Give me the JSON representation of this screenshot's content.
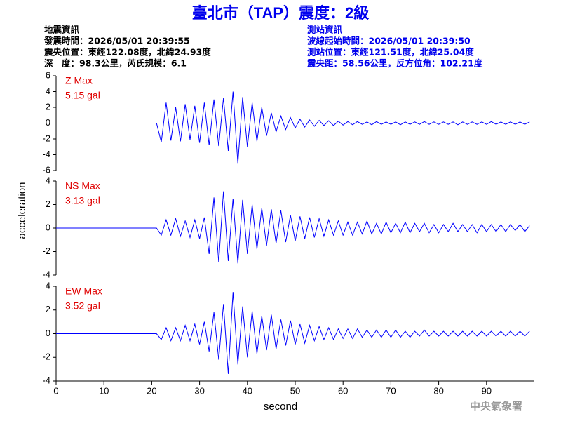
{
  "header": {
    "title": "臺北市（TAP）震度：2級",
    "left": [
      "地震資訊",
      "發震時間：2026/05/01 20:39:55",
      "震央位置：東經122.08度，北緯24.93度",
      "深　度：98.3公里，芮氏規模：6.1"
    ],
    "right": [
      "測站資訊",
      "波線起始時間：2026/05/01 20:39:50",
      "測站位置：東經121.51度，北緯25.04度",
      "震央距：58.56公里，反方位角：102.21度"
    ]
  },
  "ylabel": "acceleration",
  "footer": "中央氣象署",
  "chart_data": [
    {
      "type": "line",
      "label": "Z Max",
      "peak": "5.15 gal",
      "color": "#0000ff",
      "xlim": [
        0,
        100
      ],
      "ylim": [
        -6,
        6
      ],
      "yticks": [
        -6,
        -4,
        -2,
        0,
        2,
        4,
        6
      ],
      "x": [
        0,
        10,
        20,
        21,
        22,
        23,
        24,
        25,
        26,
        27,
        28,
        29,
        30,
        31,
        32,
        33,
        34,
        35,
        36,
        37,
        38,
        39,
        40,
        41,
        42,
        43,
        44,
        45,
        46,
        47,
        48,
        49,
        50,
        51,
        52,
        53,
        54,
        55,
        56,
        57,
        58,
        59,
        60,
        61,
        62,
        63,
        64,
        65,
        66,
        67,
        68,
        69,
        70,
        71,
        72,
        73,
        74,
        75,
        76,
        77,
        78,
        79,
        80,
        81,
        82,
        83,
        84,
        85,
        86,
        87,
        88,
        89,
        90,
        91,
        92,
        93,
        94,
        95,
        96,
        97,
        98,
        99
      ],
      "values": [
        0,
        0,
        0,
        0,
        -2.4,
        2.6,
        -2.2,
        2.0,
        -2.3,
        2.4,
        -2.1,
        2.2,
        -2.5,
        2.6,
        -2.8,
        3.0,
        -2.9,
        3.2,
        -3.5,
        4.0,
        -5.15,
        3.3,
        -3.0,
        2.6,
        -2.3,
        2.0,
        -1.6,
        1.3,
        -1.1,
        0.9,
        -0.8,
        0.7,
        -0.6,
        0.5,
        -0.5,
        0.4,
        -0.4,
        0.35,
        -0.3,
        0.3,
        -0.3,
        0.25,
        -0.25,
        0.2,
        -0.2,
        0.2,
        -0.15,
        0.15,
        -0.2,
        0.2,
        -0.15,
        0.15,
        -0.15,
        0.15,
        -0.2,
        0.15,
        -0.15,
        0.15,
        -0.15,
        0.2,
        -0.15,
        0.15,
        -0.15,
        0.15,
        -0.15,
        0.15,
        -0.2,
        0.15,
        -0.15,
        0.15,
        -0.15,
        0.15,
        -0.15,
        0.2,
        -0.15,
        0.15,
        -0.15,
        0.15,
        -0.15,
        0.15,
        -0.15,
        0.15
      ]
    },
    {
      "type": "line",
      "label": "NS Max",
      "peak": "3.13 gal",
      "color": "#0000ff",
      "xlim": [
        0,
        100
      ],
      "ylim": [
        -4,
        4
      ],
      "yticks": [
        -4,
        -2,
        0,
        2,
        4
      ],
      "x": [
        0,
        10,
        20,
        21,
        22,
        23,
        24,
        25,
        26,
        27,
        28,
        29,
        30,
        31,
        32,
        33,
        34,
        35,
        36,
        37,
        38,
        39,
        40,
        41,
        42,
        43,
        44,
        45,
        46,
        47,
        48,
        49,
        50,
        51,
        52,
        53,
        54,
        55,
        56,
        57,
        58,
        59,
        60,
        61,
        62,
        63,
        64,
        65,
        66,
        67,
        68,
        69,
        70,
        71,
        72,
        73,
        74,
        75,
        76,
        77,
        78,
        79,
        80,
        81,
        82,
        83,
        84,
        85,
        86,
        87,
        88,
        89,
        90,
        91,
        92,
        93,
        94,
        95,
        96,
        97,
        98,
        99
      ],
      "values": [
        0,
        0,
        0,
        0,
        -0.6,
        0.7,
        -0.6,
        0.8,
        -0.7,
        0.6,
        -0.8,
        0.7,
        -0.9,
        0.9,
        -2.2,
        2.6,
        -2.9,
        3.13,
        -2.8,
        2.5,
        -3.0,
        2.4,
        -2.2,
        2.0,
        -1.8,
        1.7,
        -1.5,
        1.6,
        -1.3,
        1.5,
        -1.2,
        1.1,
        -1.1,
        1.0,
        -0.9,
        0.9,
        -0.8,
        0.8,
        -0.7,
        0.7,
        -0.6,
        0.6,
        -0.6,
        0.5,
        -0.6,
        0.5,
        -0.5,
        0.6,
        -0.5,
        0.4,
        -0.5,
        0.5,
        -0.4,
        0.4,
        -0.4,
        0.5,
        -0.4,
        0.4,
        -0.3,
        0.4,
        -0.4,
        0.3,
        -0.4,
        0.3,
        -0.3,
        0.4,
        -0.3,
        0.3,
        -0.3,
        0.3,
        -0.4,
        0.3,
        -0.3,
        0.3,
        -0.3,
        0.3,
        -0.3,
        0.3,
        -0.2,
        0.3,
        -0.3,
        0.2
      ]
    },
    {
      "type": "line",
      "label": "EW Max",
      "peak": "3.52 gal",
      "color": "#0000ff",
      "xlim": [
        0,
        100
      ],
      "ylim": [
        -4,
        4
      ],
      "yticks": [
        -4,
        -2,
        0,
        2,
        4
      ],
      "xticks": [
        0,
        10,
        20,
        30,
        40,
        50,
        60,
        70,
        80,
        90
      ],
      "xlabel": "second",
      "x": [
        0,
        10,
        20,
        21,
        22,
        23,
        24,
        25,
        26,
        27,
        28,
        29,
        30,
        31,
        32,
        33,
        34,
        35,
        36,
        37,
        38,
        39,
        40,
        41,
        42,
        43,
        44,
        45,
        46,
        47,
        48,
        49,
        50,
        51,
        52,
        53,
        54,
        55,
        56,
        57,
        58,
        59,
        60,
        61,
        62,
        63,
        64,
        65,
        66,
        67,
        68,
        69,
        70,
        71,
        72,
        73,
        74,
        75,
        76,
        77,
        78,
        79,
        80,
        81,
        82,
        83,
        84,
        85,
        86,
        87,
        88,
        89,
        90,
        91,
        92,
        93,
        94,
        95,
        96,
        97,
        98,
        99
      ],
      "values": [
        0,
        0,
        0,
        0,
        -0.5,
        0.5,
        -0.6,
        0.5,
        -0.6,
        0.7,
        -0.6,
        0.8,
        -0.9,
        1.0,
        -1.5,
        1.8,
        -2.2,
        2.5,
        -3.4,
        3.52,
        -2.6,
        2.3,
        -2.0,
        1.9,
        -1.7,
        1.5,
        -1.4,
        1.6,
        -1.3,
        1.2,
        -1.0,
        1.1,
        -0.9,
        0.8,
        -0.8,
        0.7,
        -0.6,
        0.6,
        -0.5,
        0.5,
        -0.5,
        0.4,
        -0.4,
        0.4,
        -0.4,
        0.4,
        -0.3,
        0.3,
        -0.3,
        0.3,
        -0.3,
        0.3,
        -0.3,
        0.3,
        -0.3,
        0.2,
        -0.3,
        0.2,
        -0.2,
        0.3,
        -0.2,
        0.2,
        -0.2,
        0.2,
        -0.2,
        0.2,
        -0.2,
        0.2,
        -0.2,
        0.2,
        -0.2,
        0.2,
        -0.2,
        0.2,
        -0.2,
        0.2,
        -0.2,
        0.2,
        -0.2,
        0.2,
        -0.2,
        0.2
      ]
    }
  ]
}
